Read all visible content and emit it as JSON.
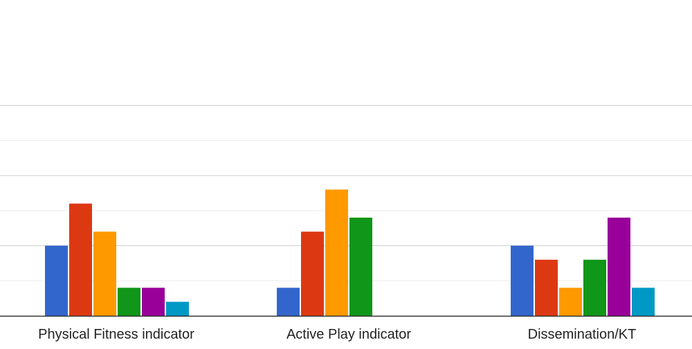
{
  "chart_data": {
    "type": "bar",
    "categories": [
      "Physical Fitness indicator",
      "Active Play indicator",
      "Dissemination/KT"
    ],
    "series": [
      {
        "values": [
          5,
          2,
          5
        ],
        "color": "#3366cc"
      },
      {
        "values": [
          8,
          6,
          4
        ],
        "color": "#dc3912"
      },
      {
        "values": [
          6,
          9,
          2
        ],
        "color": "#ff9900"
      },
      {
        "values": [
          2,
          7,
          4
        ],
        "color": "#109618"
      },
      {
        "values": [
          2,
          0,
          7
        ],
        "color": "#990099"
      },
      {
        "values": [
          1,
          0,
          2
        ],
        "color": "#0099c6"
      }
    ],
    "ylim": [
      0,
      15
    ],
    "grid": true,
    "legend": "none"
  }
}
